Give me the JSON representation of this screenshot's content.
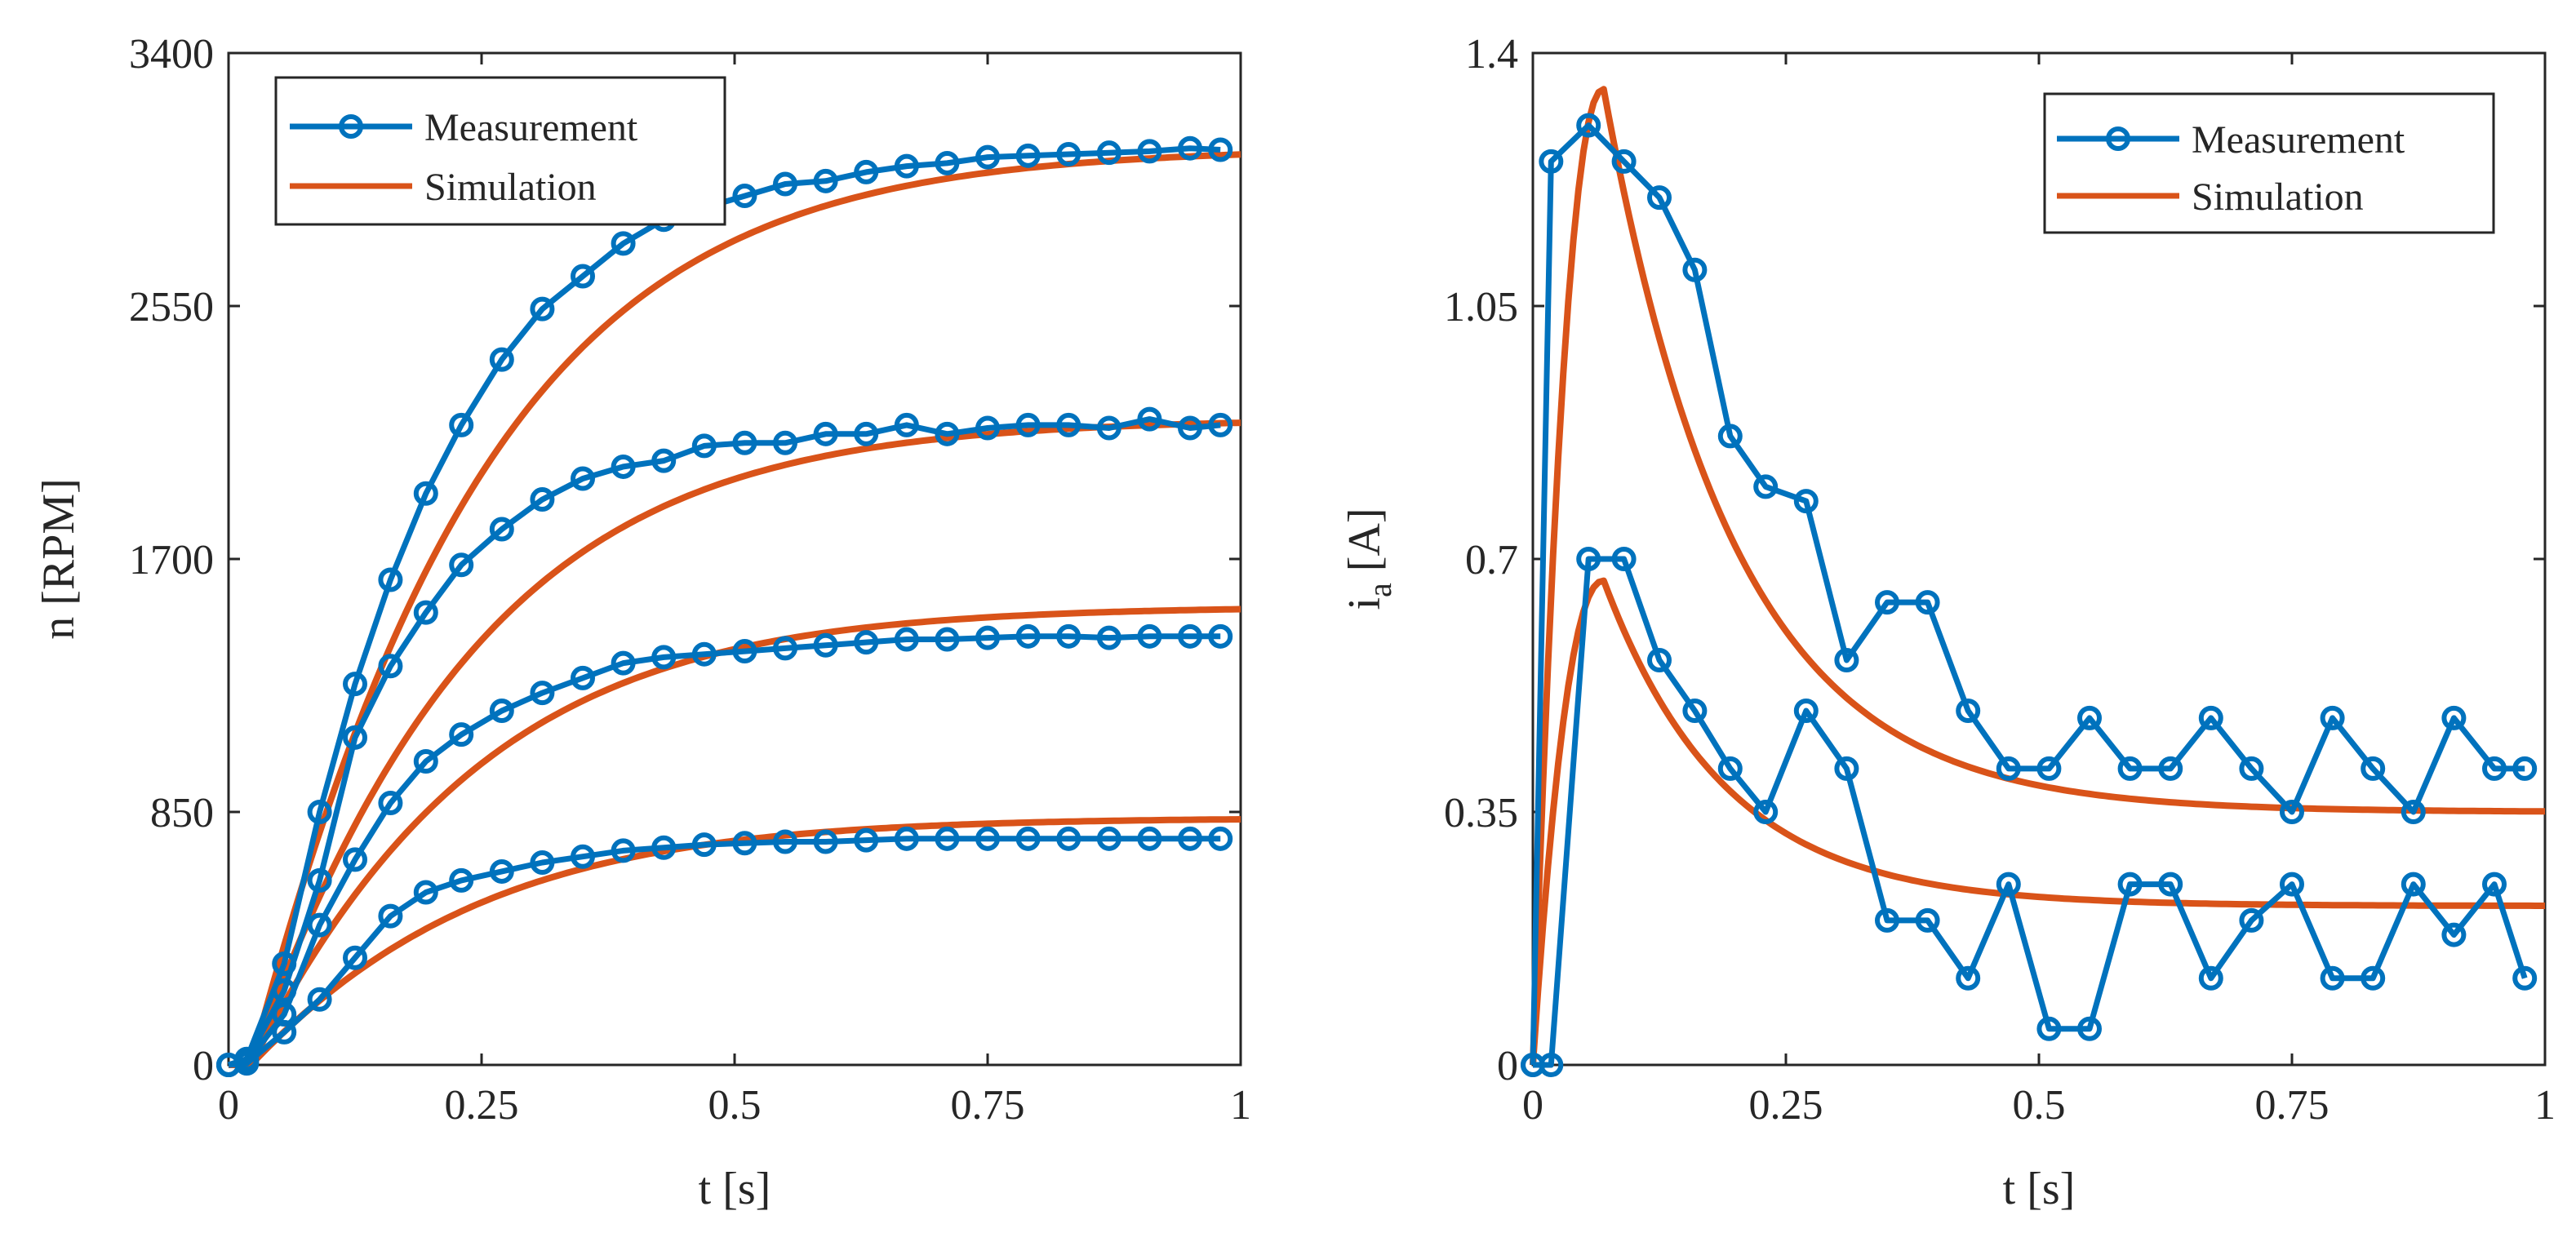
{
  "colors": {
    "measurement": "#0072BD",
    "simulation": "#D95319",
    "axis": "#262626"
  },
  "chart_data": [
    {
      "type": "line",
      "xlabel": "t [s]",
      "ylabel": "n [RPM]",
      "xlim": [
        0,
        1
      ],
      "ylim": [
        0,
        3400
      ],
      "xticks": [
        0,
        0.25,
        0.5,
        0.75,
        1
      ],
      "xtick_labels": [
        "0",
        "0.25",
        "0.5",
        "0.75",
        "1"
      ],
      "yticks": [
        0,
        850,
        1700,
        2550,
        3400
      ],
      "ytick_labels": [
        "0",
        "850",
        "1700",
        "2550",
        "3400"
      ],
      "legend": {
        "position": "top-left",
        "entries": [
          "Measurement",
          "Simulation"
        ]
      },
      "measurement_x": [
        0,
        0.018,
        0.055,
        0.09,
        0.125,
        0.16,
        0.195,
        0.23,
        0.27,
        0.31,
        0.35,
        0.39,
        0.43,
        0.47,
        0.51,
        0.55,
        0.59,
        0.63,
        0.67,
        0.71,
        0.75,
        0.79,
        0.83,
        0.87,
        0.91,
        0.95,
        0.98
      ],
      "series": [
        {
          "name": "Measurement",
          "kind": "measurement",
          "values": [
            0,
            20,
            340,
            850,
            1280,
            1630,
            1920,
            2150,
            2370,
            2540,
            2650,
            2760,
            2840,
            2880,
            2920,
            2960,
            2970,
            3000,
            3020,
            3030,
            3050,
            3055,
            3060,
            3065,
            3070,
            3080,
            3075
          ]
        },
        {
          "name": "Measurement",
          "kind": "measurement",
          "values": [
            0,
            15,
            250,
            620,
            1100,
            1340,
            1520,
            1680,
            1800,
            1900,
            1970,
            2010,
            2030,
            2080,
            2090,
            2090,
            2120,
            2120,
            2150,
            2120,
            2140,
            2150,
            2150,
            2140,
            2170,
            2140,
            2150
          ]
        },
        {
          "name": "Measurement",
          "kind": "measurement",
          "values": [
            0,
            10,
            170,
            470,
            690,
            880,
            1020,
            1110,
            1190,
            1250,
            1300,
            1350,
            1370,
            1380,
            1390,
            1400,
            1410,
            1420,
            1430,
            1430,
            1435,
            1440,
            1440,
            1435,
            1440,
            1440,
            1440
          ]
        },
        {
          "name": "Measurement",
          "kind": "measurement",
          "values": [
            0,
            5,
            110,
            220,
            360,
            500,
            580,
            620,
            650,
            680,
            700,
            720,
            730,
            740,
            745,
            750,
            750,
            755,
            760,
            760,
            760,
            760,
            760,
            760,
            760,
            760,
            760
          ]
        },
        {
          "name": "Simulation",
          "kind": "simulation",
          "final": 3080,
          "tau": 0.16,
          "delay": 0.022
        },
        {
          "name": "Simulation",
          "kind": "simulation",
          "final": 2170,
          "tau": 0.155,
          "delay": 0.022
        },
        {
          "name": "Simulation",
          "kind": "simulation",
          "final": 1540,
          "tau": 0.155,
          "delay": 0.022
        },
        {
          "name": "Simulation",
          "kind": "simulation",
          "final": 830,
          "tau": 0.155,
          "delay": 0.022
        }
      ]
    },
    {
      "type": "line",
      "xlabel": "t [s]",
      "ylabel": "i",
      "ylabel_subscript": "a",
      "ylabel_unit": " [A]",
      "xlim": [
        0,
        1
      ],
      "ylim": [
        0,
        1.4
      ],
      "xticks": [
        0,
        0.25,
        0.5,
        0.75,
        1
      ],
      "xtick_labels": [
        "0",
        "0.25",
        "0.5",
        "0.75",
        "1"
      ],
      "yticks": [
        0,
        0.35,
        0.7,
        1.05,
        1.4
      ],
      "ytick_labels": [
        "0",
        "0.35",
        "0.7",
        "1.05",
        "1.4"
      ],
      "legend": {
        "position": "top-right",
        "entries": [
          "Measurement",
          "Simulation"
        ]
      },
      "measurement_x": [
        0,
        0.018,
        0.055,
        0.09,
        0.125,
        0.16,
        0.195,
        0.23,
        0.27,
        0.31,
        0.35,
        0.39,
        0.43,
        0.47,
        0.51,
        0.55,
        0.59,
        0.63,
        0.67,
        0.71,
        0.75,
        0.79,
        0.83,
        0.87,
        0.91,
        0.95,
        0.98
      ],
      "series": [
        {
          "name": "Measurement",
          "kind": "measurement",
          "values": [
            0,
            1.25,
            1.3,
            1.25,
            1.2,
            1.1,
            0.87,
            0.8,
            0.78,
            0.56,
            0.64,
            0.64,
            0.49,
            0.41,
            0.41,
            0.48,
            0.41,
            0.41,
            0.48,
            0.41,
            0.35,
            0.48,
            0.41,
            0.35,
            0.48,
            0.41,
            0.41
          ]
        },
        {
          "name": "Measurement",
          "kind": "measurement",
          "values": [
            0,
            0,
            0.7,
            0.7,
            0.56,
            0.49,
            0.41,
            0.35,
            0.49,
            0.41,
            0.2,
            0.2,
            0.12,
            0.25,
            0.05,
            0.05,
            0.25,
            0.25,
            0.12,
            0.2,
            0.25,
            0.12,
            0.12,
            0.25,
            0.18,
            0.25,
            0.12
          ]
        },
        {
          "name": "Simulation",
          "kind": "simulation",
          "steady": 0.35,
          "peak": 1.35,
          "peak_t": 0.07,
          "tau": 0.13
        },
        {
          "name": "Simulation",
          "kind": "simulation",
          "steady": 0.22,
          "peak": 0.67,
          "peak_t": 0.07,
          "tau": 0.12
        }
      ]
    }
  ]
}
